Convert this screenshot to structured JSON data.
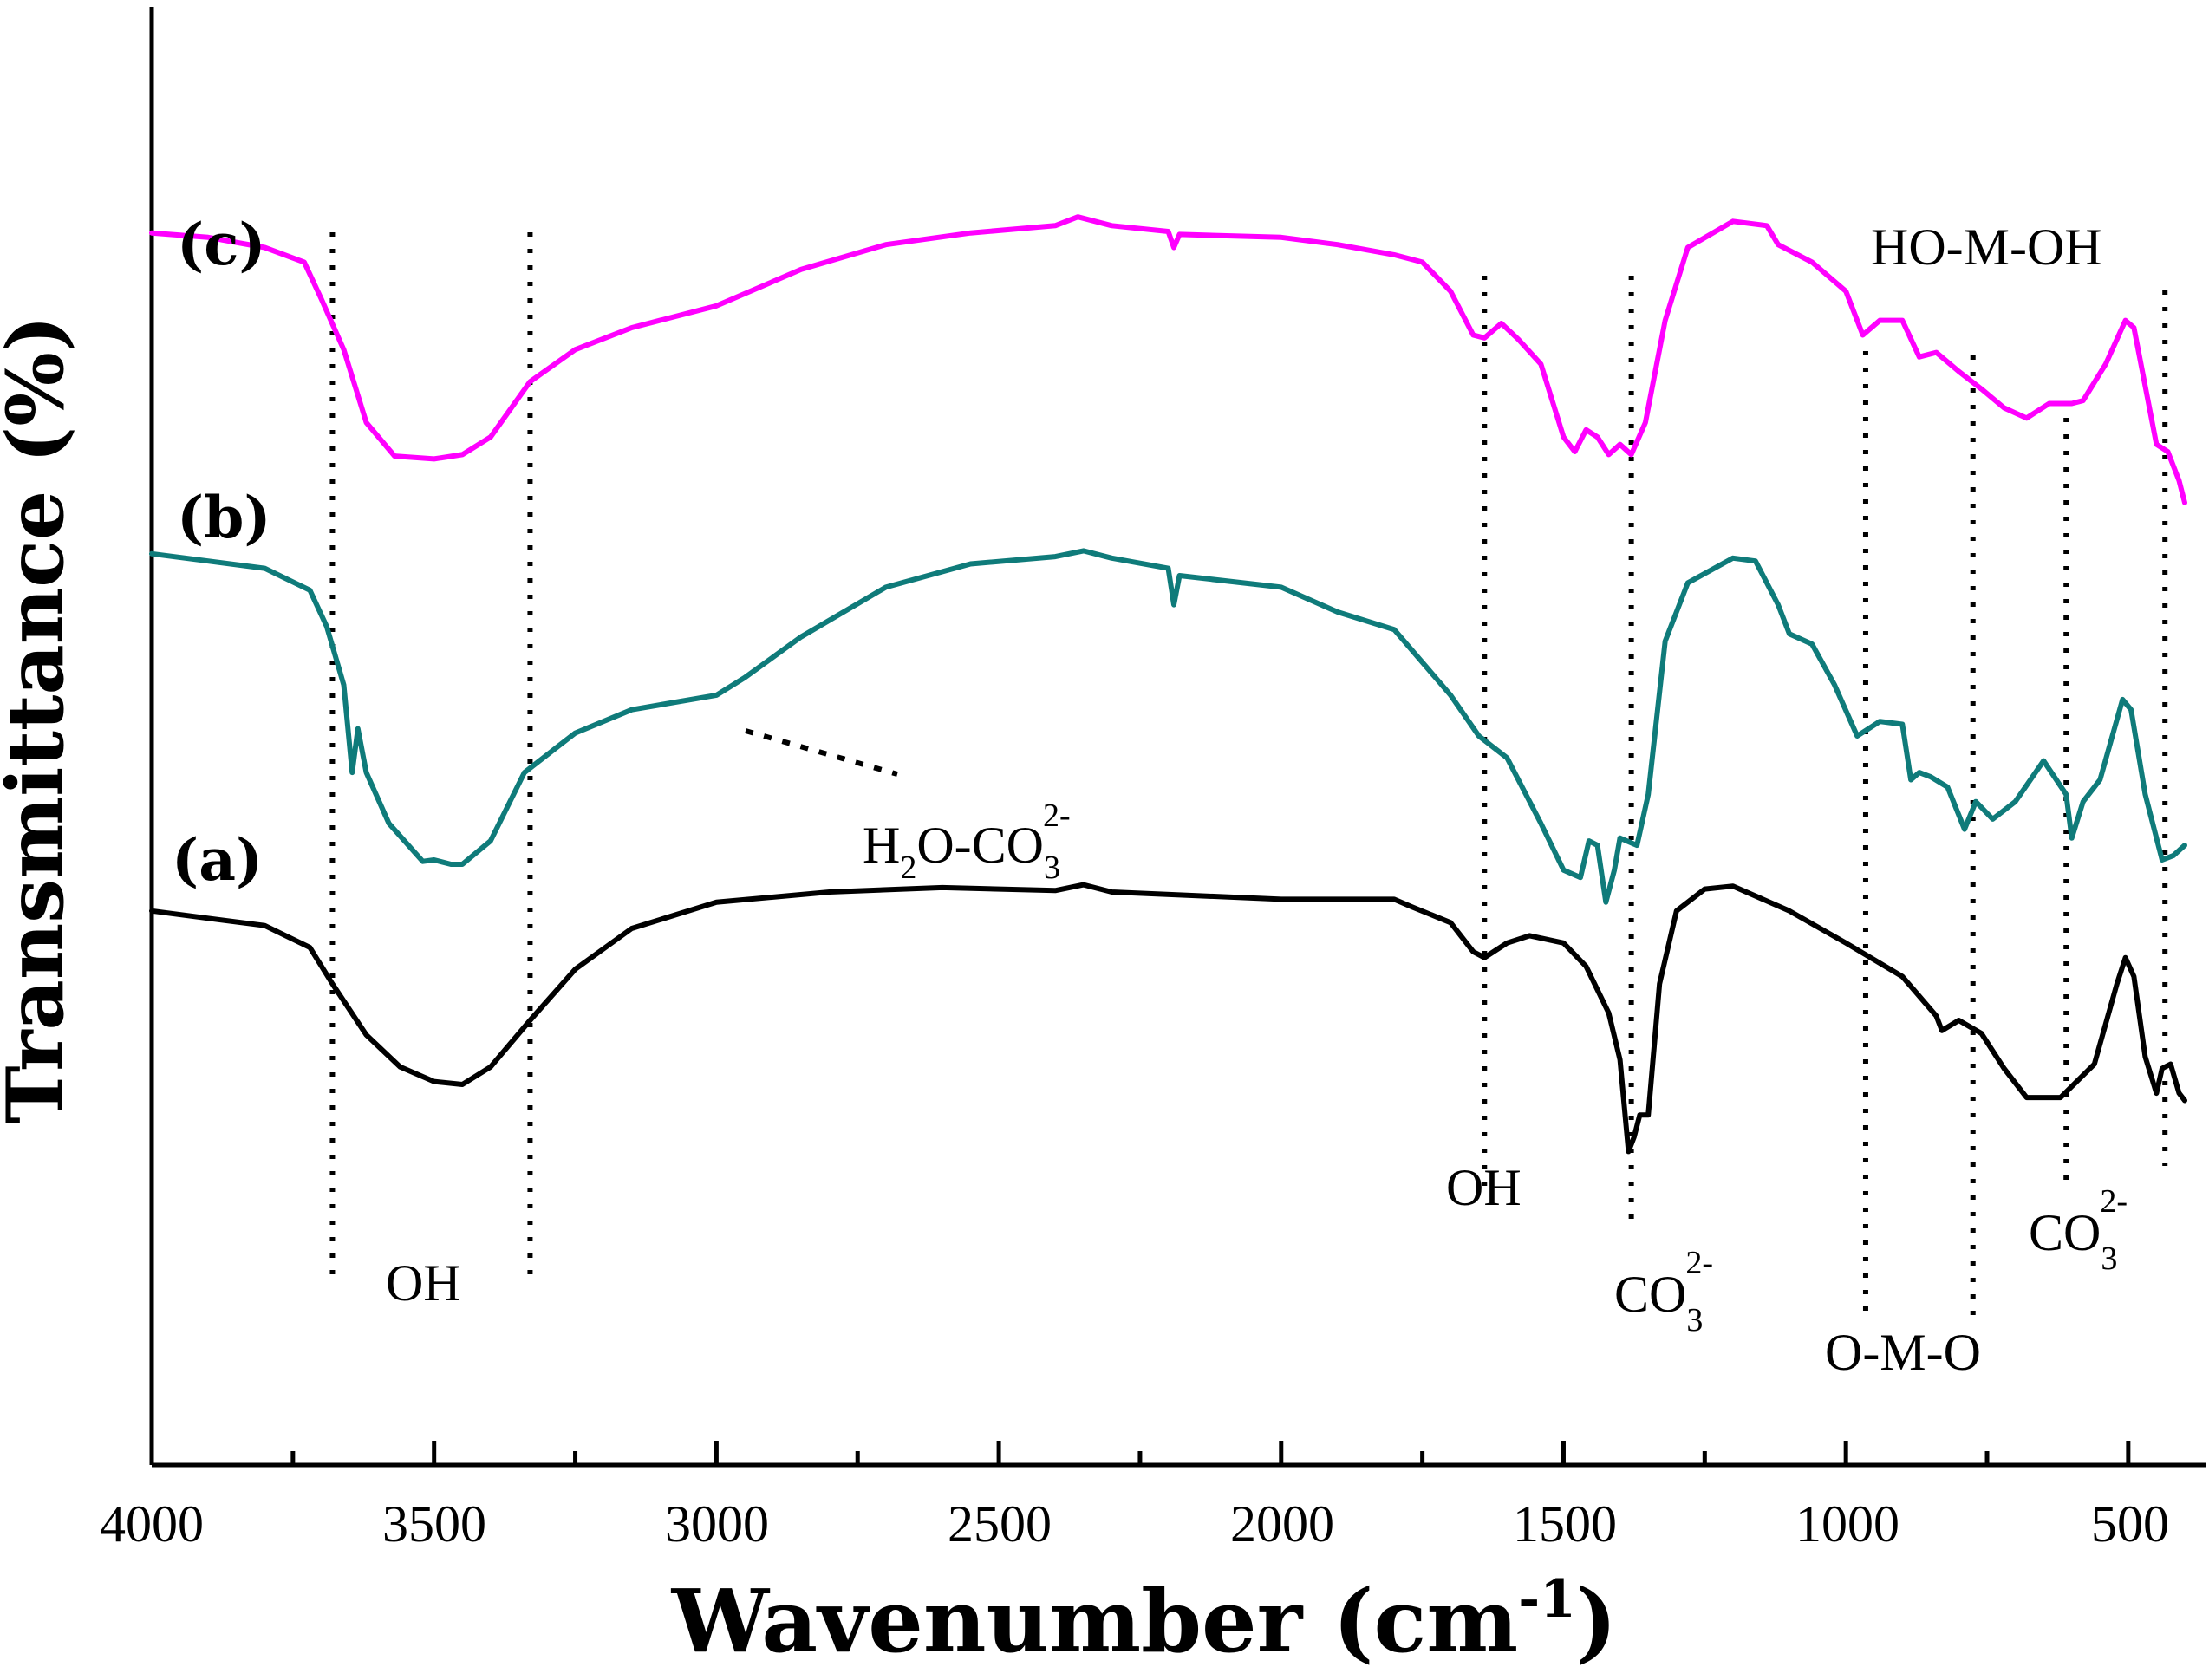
{
  "chart_data": {
    "type": "line",
    "title": "",
    "xlabel": "Wavenumber",
    "xlabel_unit_base": "(cm",
    "xlabel_unit_exp": "-1",
    "xlabel_unit_close": ")",
    "ylabel": "Transmittance (%)",
    "xlim": [
      4000,
      400
    ],
    "ylim": [
      0,
      100
    ],
    "y_ticks_shown": false,
    "x_tick_labels": [
      "4000",
      "3500",
      "3000",
      "2500",
      "2000",
      "1500",
      "1000",
      "500"
    ],
    "grid": false,
    "series": [
      {
        "name": "(a)",
        "color": "#000000",
        "points": [
          [
            4000,
            38
          ],
          [
            3900,
            37.5
          ],
          [
            3800,
            37
          ],
          [
            3720,
            35.5
          ],
          [
            3680,
            33
          ],
          [
            3620,
            29.5
          ],
          [
            3560,
            27.3
          ],
          [
            3500,
            26.3
          ],
          [
            3450,
            26.1
          ],
          [
            3400,
            27.3
          ],
          [
            3330,
            30.5
          ],
          [
            3250,
            34
          ],
          [
            3150,
            36.8
          ],
          [
            3000,
            38.6
          ],
          [
            2800,
            39.3
          ],
          [
            2600,
            39.6
          ],
          [
            2400,
            39.4
          ],
          [
            2350,
            39.8
          ],
          [
            2300,
            39.3
          ],
          [
            2000,
            38.8
          ],
          [
            1800,
            38.8
          ],
          [
            1770,
            38.3
          ],
          [
            1700,
            37.2
          ],
          [
            1660,
            35.2
          ],
          [
            1640,
            34.8
          ],
          [
            1600,
            35.8
          ],
          [
            1560,
            36.3
          ],
          [
            1500,
            35.8
          ],
          [
            1460,
            34.2
          ],
          [
            1420,
            31
          ],
          [
            1400,
            27.8
          ],
          [
            1385,
            21.5
          ],
          [
            1375,
            22.5
          ],
          [
            1365,
            24
          ],
          [
            1350,
            24
          ],
          [
            1330,
            33
          ],
          [
            1300,
            38
          ],
          [
            1250,
            39.5
          ],
          [
            1200,
            39.7
          ],
          [
            1100,
            38
          ],
          [
            1000,
            35.8
          ],
          [
            900,
            33.5
          ],
          [
            840,
            30.8
          ],
          [
            830,
            29.8
          ],
          [
            800,
            30.5
          ],
          [
            760,
            29.6
          ],
          [
            720,
            27.2
          ],
          [
            680,
            25.2
          ],
          [
            620,
            25.2
          ],
          [
            560,
            27.5
          ],
          [
            520,
            33
          ],
          [
            505,
            34.8
          ],
          [
            490,
            33.5
          ],
          [
            470,
            28
          ],
          [
            450,
            25.5
          ],
          [
            440,
            27.2
          ],
          [
            425,
            27.5
          ],
          [
            410,
            25.5
          ],
          [
            400,
            25
          ]
        ]
      },
      {
        "name": "(b)",
        "color": "#0f7b7a",
        "points": [
          [
            4000,
            62.5
          ],
          [
            3900,
            62
          ],
          [
            3800,
            61.5
          ],
          [
            3720,
            60
          ],
          [
            3690,
            57.5
          ],
          [
            3660,
            53.5
          ],
          [
            3645,
            47.5
          ],
          [
            3635,
            50.5
          ],
          [
            3620,
            47.5
          ],
          [
            3580,
            44
          ],
          [
            3520,
            41.4
          ],
          [
            3500,
            41.5
          ],
          [
            3470,
            41.2
          ],
          [
            3450,
            41.2
          ],
          [
            3400,
            42.8
          ],
          [
            3340,
            47.5
          ],
          [
            3250,
            50.2
          ],
          [
            3150,
            51.8
          ],
          [
            3000,
            52.8
          ],
          [
            2950,
            54
          ],
          [
            2850,
            56.8
          ],
          [
            2700,
            60.2
          ],
          [
            2550,
            61.8
          ],
          [
            2400,
            62.3
          ],
          [
            2350,
            62.7
          ],
          [
            2300,
            62.2
          ],
          [
            2200,
            61.5
          ],
          [
            2190,
            59
          ],
          [
            2180,
            61
          ],
          [
            2000,
            60.2
          ],
          [
            1900,
            58.5
          ],
          [
            1800,
            57.3
          ],
          [
            1700,
            52.8
          ],
          [
            1650,
            50
          ],
          [
            1600,
            48.5
          ],
          [
            1540,
            44
          ],
          [
            1500,
            40.8
          ],
          [
            1470,
            40.3
          ],
          [
            1455,
            42.8
          ],
          [
            1440,
            42.5
          ],
          [
            1425,
            38.6
          ],
          [
            1410,
            40.8
          ],
          [
            1400,
            43
          ],
          [
            1370,
            42.5
          ],
          [
            1350,
            46
          ],
          [
            1320,
            56.5
          ],
          [
            1280,
            60.5
          ],
          [
            1200,
            62.2
          ],
          [
            1160,
            62
          ],
          [
            1120,
            59
          ],
          [
            1100,
            57
          ],
          [
            1060,
            56.3
          ],
          [
            1020,
            53.5
          ],
          [
            980,
            50
          ],
          [
            940,
            51
          ],
          [
            900,
            50.8
          ],
          [
            885,
            47
          ],
          [
            870,
            47.5
          ],
          [
            850,
            47.2
          ],
          [
            820,
            46.5
          ],
          [
            790,
            43.6
          ],
          [
            770,
            45.5
          ],
          [
            740,
            44.3
          ],
          [
            700,
            45.5
          ],
          [
            650,
            48.3
          ],
          [
            610,
            46
          ],
          [
            600,
            43
          ],
          [
            580,
            45.5
          ],
          [
            550,
            47
          ],
          [
            510,
            52.5
          ],
          [
            495,
            51.8
          ],
          [
            470,
            46
          ],
          [
            450,
            43
          ],
          [
            440,
            41.5
          ],
          [
            420,
            41.8
          ],
          [
            400,
            42.5
          ]
        ]
      },
      {
        "name": "(c)",
        "color": "#ff00ff",
        "points": [
          [
            4000,
            84.5
          ],
          [
            3900,
            84.2
          ],
          [
            3800,
            83.5
          ],
          [
            3730,
            82.5
          ],
          [
            3700,
            80
          ],
          [
            3660,
            76.5
          ],
          [
            3620,
            71.5
          ],
          [
            3570,
            69.2
          ],
          [
            3500,
            69
          ],
          [
            3450,
            69.3
          ],
          [
            3400,
            70.5
          ],
          [
            3330,
            74.3
          ],
          [
            3250,
            76.5
          ],
          [
            3150,
            78
          ],
          [
            3000,
            79.5
          ],
          [
            2850,
            82
          ],
          [
            2700,
            83.7
          ],
          [
            2550,
            84.5
          ],
          [
            2400,
            85
          ],
          [
            2360,
            85.6
          ],
          [
            2300,
            85
          ],
          [
            2200,
            84.6
          ],
          [
            2190,
            83.5
          ],
          [
            2180,
            84.4
          ],
          [
            2000,
            84.2
          ],
          [
            1900,
            83.7
          ],
          [
            1800,
            83
          ],
          [
            1750,
            82.5
          ],
          [
            1700,
            80.5
          ],
          [
            1660,
            77.5
          ],
          [
            1640,
            77.3
          ],
          [
            1610,
            78.3
          ],
          [
            1580,
            77.2
          ],
          [
            1540,
            75.5
          ],
          [
            1500,
            70.5
          ],
          [
            1480,
            69.5
          ],
          [
            1460,
            71
          ],
          [
            1440,
            70.5
          ],
          [
            1420,
            69.3
          ],
          [
            1400,
            70
          ],
          [
            1380,
            69.3
          ],
          [
            1355,
            71.5
          ],
          [
            1320,
            78.5
          ],
          [
            1280,
            83.5
          ],
          [
            1200,
            85.3
          ],
          [
            1140,
            85
          ],
          [
            1120,
            83.7
          ],
          [
            1060,
            82.5
          ],
          [
            1000,
            80.5
          ],
          [
            970,
            77.5
          ],
          [
            940,
            78.5
          ],
          [
            900,
            78.5
          ],
          [
            870,
            76
          ],
          [
            840,
            76.3
          ],
          [
            800,
            75
          ],
          [
            760,
            73.8
          ],
          [
            720,
            72.5
          ],
          [
            680,
            71.8
          ],
          [
            640,
            72.8
          ],
          [
            600,
            72.8
          ],
          [
            580,
            73
          ],
          [
            540,
            75.5
          ],
          [
            505,
            78.5
          ],
          [
            490,
            78
          ],
          [
            470,
            74
          ],
          [
            450,
            70
          ],
          [
            430,
            69.5
          ],
          [
            410,
            67.5
          ],
          [
            400,
            66
          ]
        ]
      }
    ],
    "series_labels": [
      "(a)",
      "(b)",
      "(c)"
    ],
    "marker_lines_cm": [
      3680,
      3330,
      1640,
      1380,
      965,
      775,
      610,
      435
    ],
    "annotations": {
      "oh_left": "OH",
      "oh_mid": "OH",
      "h2o_carbonate": {
        "base1": "H",
        "sub1": "2",
        "base2": "O-CO",
        "sub2": "3",
        "sup2": "2-"
      },
      "carbonate_1380": {
        "base": "CO",
        "sub": "3",
        "sup": "2-"
      },
      "carbonate_610": {
        "base": "CO",
        "sub": "3",
        "sup": "2-"
      },
      "o_m_o": "O-M-O",
      "ho_m_oh": "HO-M-OH"
    }
  }
}
